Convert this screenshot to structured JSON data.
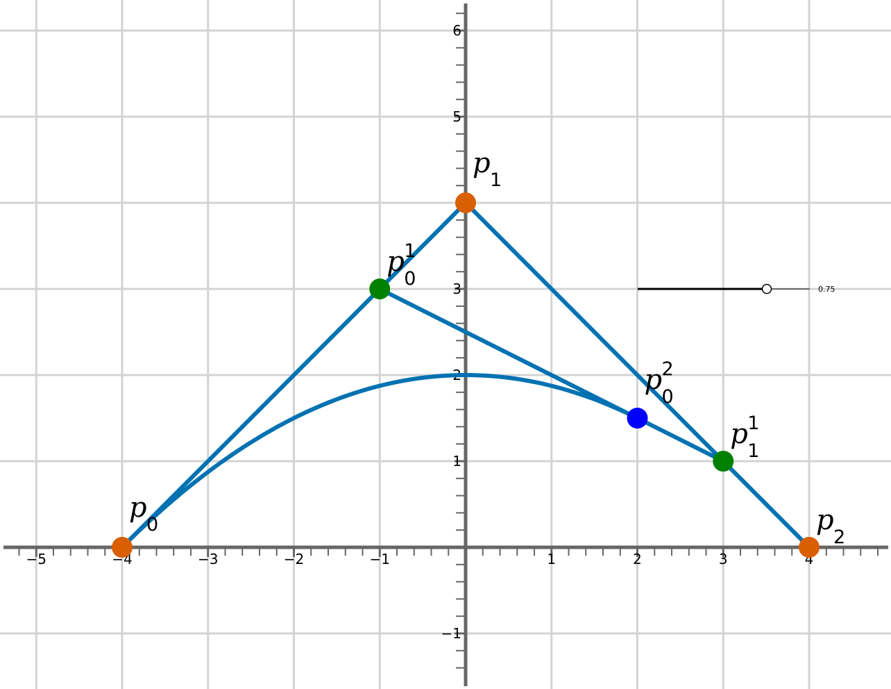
{
  "axes": {
    "x_range": [
      -5.4,
      4.9
    ],
    "y_range": [
      -1.65,
      6.35
    ],
    "x_ticks": [
      "−5",
      "−4",
      "−3",
      "−2",
      "−1",
      "1",
      "2",
      "3",
      "4"
    ],
    "x_tick_values": [
      -5,
      -4,
      -3,
      -2,
      -1,
      1,
      2,
      3,
      4
    ],
    "y_ticks": [
      "−1",
      "1",
      "2",
      "3",
      "5",
      "6"
    ],
    "y_tick_values": [
      -1,
      1,
      2,
      3,
      5,
      6
    ]
  },
  "points": [
    {
      "id": "p0",
      "base": "p",
      "sub": "0",
      "sup": "",
      "x": -4,
      "y": 0,
      "color": "#d95f02"
    },
    {
      "id": "p1",
      "base": "p",
      "sub": "1",
      "sup": "",
      "x": 0,
      "y": 4,
      "color": "#d95f02"
    },
    {
      "id": "p2",
      "base": "p",
      "sub": "2",
      "sup": "",
      "x": 4,
      "y": 0,
      "color": "#d95f02"
    },
    {
      "id": "p01",
      "base": "p",
      "sub": "0",
      "sup": "1",
      "x": -1,
      "y": 3,
      "color": "#008000"
    },
    {
      "id": "p11",
      "base": "p",
      "sub": "1",
      "sup": "1",
      "x": 3,
      "y": 1,
      "color": "#008000"
    },
    {
      "id": "p02",
      "base": "p",
      "sub": "0",
      "sup": "2",
      "x": 2,
      "y": 1.5,
      "color": "#0000ff"
    }
  ],
  "segments": [
    [
      "p0",
      "p1"
    ],
    [
      "p1",
      "p2"
    ],
    [
      "p01",
      "p11"
    ]
  ],
  "curve": {
    "type": "quadratic-bezier",
    "control_points": [
      "p0",
      "p1",
      "p2"
    ],
    "t_max": 0.75,
    "color": "#0072b2"
  },
  "slider": {
    "value": 0.75,
    "label": "0.75",
    "min": 0,
    "max": 1
  },
  "colors": {
    "line": "#0072b2",
    "grid": "#d3d3d3",
    "axis": "#666666"
  }
}
